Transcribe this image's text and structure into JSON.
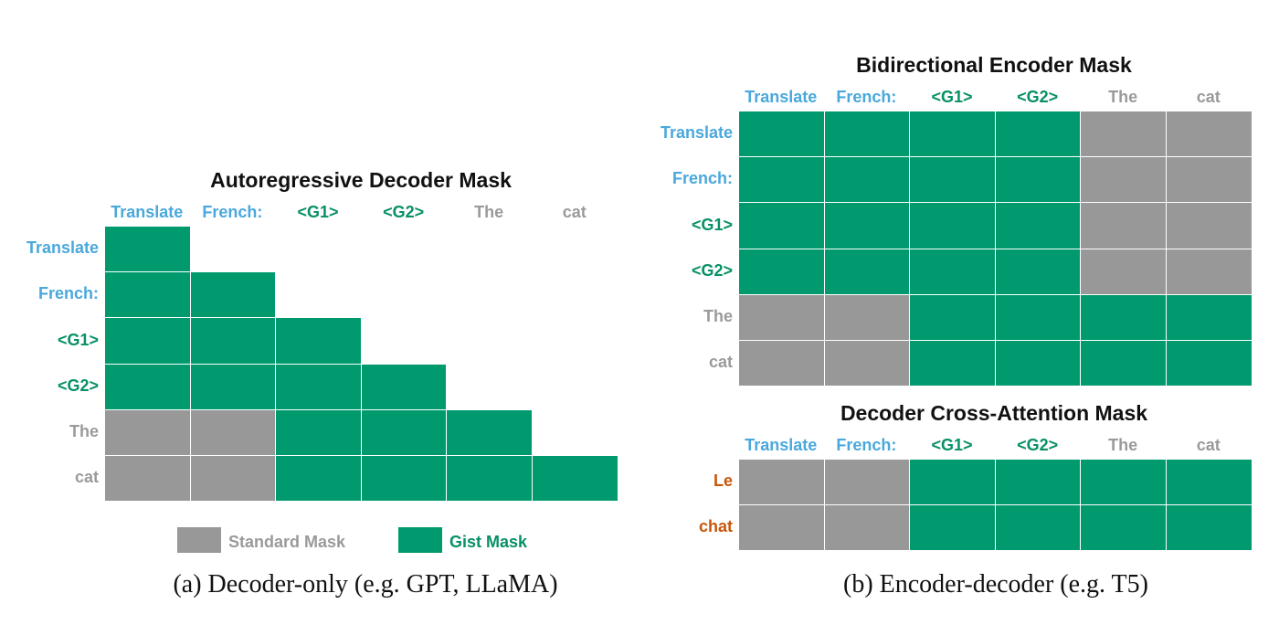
{
  "colors": {
    "gist": "#019a6e",
    "standard": "#989898",
    "prompt_token": "#4aa8dc",
    "gist_token": "#089066",
    "input_token": "#9a9a9a",
    "output_token": "#c8560a"
  },
  "tokens": [
    {
      "text": "Translate",
      "kind": "prompt"
    },
    {
      "text": "French:",
      "kind": "prompt"
    },
    {
      "text": "<G1>",
      "kind": "gist"
    },
    {
      "text": "<G2>",
      "kind": "gist"
    },
    {
      "text": "The",
      "kind": "input"
    },
    {
      "text": "cat",
      "kind": "input"
    }
  ],
  "panels": {
    "decoder_only": {
      "title": "Autoregressive Decoder Mask",
      "caption": "(a) Decoder-only (e.g. GPT, LLaMA)",
      "rows": [
        "Translate",
        "French:",
        "<G1>",
        "<G2>",
        "The",
        "cat"
      ],
      "mask": [
        [
          "G",
          "",
          "",
          "",
          "",
          ""
        ],
        [
          "G",
          "G",
          "",
          "",
          "",
          ""
        ],
        [
          "G",
          "G",
          "G",
          "",
          "",
          ""
        ],
        [
          "G",
          "G",
          "G",
          "G",
          "",
          ""
        ],
        [
          "S",
          "S",
          "G",
          "G",
          "G",
          ""
        ],
        [
          "S",
          "S",
          "G",
          "G",
          "G",
          "G"
        ]
      ]
    },
    "encoder": {
      "title": "Bidirectional Encoder Mask",
      "rows": [
        "Translate",
        "French:",
        "<G1>",
        "<G2>",
        "The",
        "cat"
      ],
      "mask": [
        [
          "G",
          "G",
          "G",
          "G",
          "S",
          "S"
        ],
        [
          "G",
          "G",
          "G",
          "G",
          "S",
          "S"
        ],
        [
          "G",
          "G",
          "G",
          "G",
          "S",
          "S"
        ],
        [
          "G",
          "G",
          "G",
          "G",
          "S",
          "S"
        ],
        [
          "S",
          "S",
          "G",
          "G",
          "G",
          "G"
        ],
        [
          "S",
          "S",
          "G",
          "G",
          "G",
          "G"
        ]
      ]
    },
    "cross_attention": {
      "title": "Decoder Cross-Attention Mask",
      "caption": "(b) Encoder-decoder (e.g. T5)",
      "rows": [
        {
          "text": "Le",
          "kind": "output"
        },
        {
          "text": "chat",
          "kind": "output"
        }
      ],
      "mask": [
        [
          "S",
          "S",
          "G",
          "G",
          "G",
          "G"
        ],
        [
          "S",
          "S",
          "G",
          "G",
          "G",
          "G"
        ]
      ]
    }
  },
  "legend": {
    "standard_label": "Standard Mask",
    "gist_label": "Gist Mask"
  }
}
